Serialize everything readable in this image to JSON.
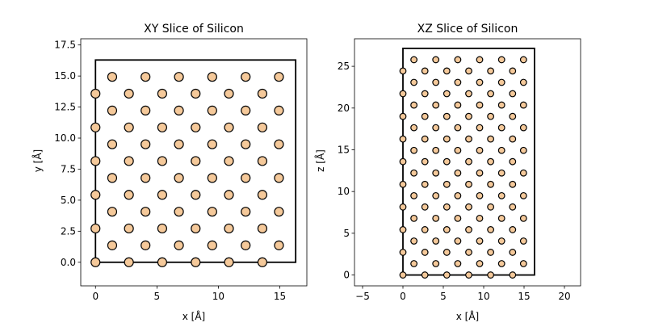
{
  "chart_data": [
    {
      "type": "scatter",
      "title": "XY Slice of Silicon",
      "xlabel": "x [Å]",
      "ylabel": "y [Å]",
      "xlim": [
        -1.2,
        17.2
      ],
      "ylim": [
        -1.9,
        18.0
      ],
      "xticks": [
        0,
        5,
        10,
        15
      ],
      "xtick_labels": [
        "0",
        "5",
        "10",
        "15"
      ],
      "yticks": [
        0.0,
        2.5,
        5.0,
        7.5,
        10.0,
        12.5,
        15.0,
        17.5
      ],
      "ytick_labels": [
        "0.0",
        "2.5",
        "5.0",
        "7.5",
        "10.0",
        "12.5",
        "15.0",
        "17.5"
      ],
      "cell": {
        "x": [
          0,
          16.29
        ],
        "y": [
          0,
          16.29
        ]
      },
      "atom_color": "#f5c99a",
      "edge_color": "#000000",
      "grid": false,
      "points": {
        "x": [
          0,
          2.72,
          5.43,
          8.15,
          10.86,
          13.58,
          1.36,
          4.07,
          6.79,
          9.5,
          12.22,
          14.93,
          0,
          2.72,
          5.43,
          8.15,
          10.86,
          13.58,
          1.36,
          4.07,
          6.79,
          9.5,
          12.22,
          14.93,
          0,
          2.72,
          5.43,
          8.15,
          10.86,
          13.58,
          1.36,
          4.07,
          6.79,
          9.5,
          12.22,
          14.93,
          0,
          2.72,
          5.43,
          8.15,
          10.86,
          13.58,
          1.36,
          4.07,
          6.79,
          9.5,
          12.22,
          14.93,
          0,
          2.72,
          5.43,
          8.15,
          10.86,
          13.58,
          1.36,
          4.07,
          6.79,
          9.5,
          12.22,
          14.93,
          0,
          2.72,
          5.43,
          8.15,
          10.86,
          13.58,
          1.36,
          4.07,
          6.79,
          9.5,
          12.22,
          14.93
        ],
        "y": [
          0,
          0,
          0,
          0,
          0,
          0,
          1.36,
          1.36,
          1.36,
          1.36,
          1.36,
          1.36,
          2.72,
          2.72,
          2.72,
          2.72,
          2.72,
          2.72,
          4.07,
          4.07,
          4.07,
          4.07,
          4.07,
          4.07,
          5.43,
          5.43,
          5.43,
          5.43,
          5.43,
          5.43,
          6.79,
          6.79,
          6.79,
          6.79,
          6.79,
          6.79,
          8.15,
          8.15,
          8.15,
          8.15,
          8.15,
          8.15,
          9.5,
          9.5,
          9.5,
          9.5,
          9.5,
          9.5,
          10.86,
          10.86,
          10.86,
          10.86,
          10.86,
          10.86,
          12.22,
          12.22,
          12.22,
          12.22,
          12.22,
          12.22,
          13.58,
          13.58,
          13.58,
          13.58,
          13.58,
          13.58,
          14.93,
          14.93,
          14.93,
          14.93,
          14.93,
          14.93
        ]
      }
    },
    {
      "type": "scatter",
      "title": "XZ Slice of Silicon",
      "xlabel": "x [Å]",
      "ylabel": "z [Å]",
      "xlim": [
        -6.0,
        22.0
      ],
      "ylim": [
        -1.3,
        28.3
      ],
      "xticks": [
        -5,
        0,
        5,
        10,
        15,
        20
      ],
      "xtick_labels": [
        "−5",
        "0",
        "5",
        "10",
        "15",
        "20"
      ],
      "yticks": [
        0,
        5,
        10,
        15,
        20,
        25
      ],
      "ytick_labels": [
        "0",
        "5",
        "10",
        "15",
        "20",
        "25"
      ],
      "cell": {
        "x": [
          0,
          16.29
        ],
        "y": [
          0,
          27.15
        ]
      },
      "atom_color": "#f5c99a",
      "edge_color": "#000000",
      "grid": false,
      "points": {
        "x": [
          0,
          2.72,
          5.43,
          8.15,
          10.86,
          13.58,
          1.36,
          4.07,
          6.79,
          9.5,
          12.22,
          14.93,
          0,
          2.72,
          5.43,
          8.15,
          10.86,
          13.58,
          1.36,
          4.07,
          6.79,
          9.5,
          12.22,
          14.93,
          0,
          2.72,
          5.43,
          8.15,
          10.86,
          13.58,
          1.36,
          4.07,
          6.79,
          9.5,
          12.22,
          14.93,
          0,
          2.72,
          5.43,
          8.15,
          10.86,
          13.58,
          1.36,
          4.07,
          6.79,
          9.5,
          12.22,
          14.93,
          0,
          2.72,
          5.43,
          8.15,
          10.86,
          13.58,
          1.36,
          4.07,
          6.79,
          9.5,
          12.22,
          14.93,
          0,
          2.72,
          5.43,
          8.15,
          10.86,
          13.58,
          1.36,
          4.07,
          6.79,
          9.5,
          12.22,
          14.93,
          0,
          2.72,
          5.43,
          8.15,
          10.86,
          13.58,
          1.36,
          4.07,
          6.79,
          9.5,
          12.22,
          14.93,
          0,
          2.72,
          5.43,
          8.15,
          10.86,
          13.58,
          1.36,
          4.07,
          6.79,
          9.5,
          12.22,
          14.93,
          0,
          2.72,
          5.43,
          8.15,
          10.86,
          13.58,
          1.36,
          4.07,
          6.79,
          9.5,
          12.22,
          14.93,
          0,
          2.72,
          5.43,
          8.15,
          10.86,
          13.58,
          1.36,
          4.07,
          6.79,
          9.5,
          12.22,
          14.93
        ],
        "y": [
          0,
          0,
          0,
          0,
          0,
          0,
          1.36,
          1.36,
          1.36,
          1.36,
          1.36,
          1.36,
          2.72,
          2.72,
          2.72,
          2.72,
          2.72,
          2.72,
          4.07,
          4.07,
          4.07,
          4.07,
          4.07,
          4.07,
          5.43,
          5.43,
          5.43,
          5.43,
          5.43,
          5.43,
          6.79,
          6.79,
          6.79,
          6.79,
          6.79,
          6.79,
          8.15,
          8.15,
          8.15,
          8.15,
          8.15,
          8.15,
          9.5,
          9.5,
          9.5,
          9.5,
          9.5,
          9.5,
          10.86,
          10.86,
          10.86,
          10.86,
          10.86,
          10.86,
          12.22,
          12.22,
          12.22,
          12.22,
          12.22,
          12.22,
          13.58,
          13.58,
          13.58,
          13.58,
          13.58,
          13.58,
          14.93,
          14.93,
          14.93,
          14.93,
          14.93,
          14.93,
          16.29,
          16.29,
          16.29,
          16.29,
          16.29,
          16.29,
          17.65,
          17.65,
          17.65,
          17.65,
          17.65,
          17.65,
          19.0,
          19.0,
          19.0,
          19.0,
          19.0,
          19.0,
          20.36,
          20.36,
          20.36,
          20.36,
          20.36,
          20.36,
          21.72,
          21.72,
          21.72,
          21.72,
          21.72,
          21.72,
          23.08,
          23.08,
          23.08,
          23.08,
          23.08,
          23.08,
          24.44,
          24.44,
          24.44,
          24.44,
          24.44,
          24.44,
          25.79,
          25.79,
          25.79,
          25.79,
          25.79,
          25.79
        ]
      }
    }
  ]
}
